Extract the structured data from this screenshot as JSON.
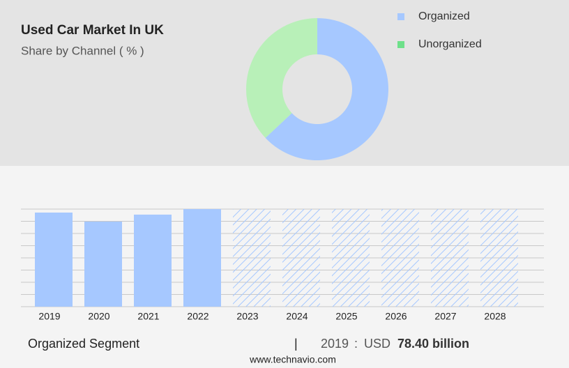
{
  "chart_data": [
    {
      "type": "donut",
      "title": "Used Car Market In UK",
      "subtitle": "Share by Channel ( % )",
      "categories": [
        "Organized",
        "Unorganized"
      ],
      "values": [
        63,
        37
      ],
      "colors": [
        "#a6c8ff",
        "#b8f0b8"
      ],
      "legend_colors": [
        "#a6c8ff",
        "#6ee08a"
      ],
      "legend": "top-right"
    },
    {
      "type": "bar",
      "categories": [
        "2019",
        "2020",
        "2021",
        "2022",
        "2023",
        "2024",
        "2025",
        "2026",
        "2027",
        "2028"
      ],
      "values": [
        78.4,
        70.9,
        76.7,
        81.3,
        null,
        null,
        null,
        null,
        null,
        null
      ],
      "color": "#a6c8ff",
      "ylim": [
        0,
        81.3
      ],
      "grid": true
    }
  ],
  "footer": {
    "label": "Organized Segment",
    "divider": "|",
    "year": "2019",
    "separator": ":",
    "currency": "USD",
    "amount": "78.40 billion"
  },
  "source": "www.technavio.com"
}
